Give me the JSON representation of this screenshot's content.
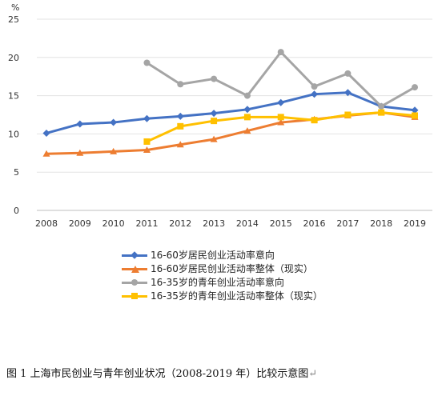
{
  "chart_data": {
    "type": "line",
    "y_unit": "%",
    "x": [
      "2008",
      "2009",
      "2010",
      "2011",
      "2012",
      "2013",
      "2014",
      "2015",
      "2016",
      "2017",
      "2018",
      "2019"
    ],
    "ylim": [
      0,
      25
    ],
    "yticks": [
      0,
      5,
      10,
      15,
      20,
      25
    ],
    "grid": true,
    "legend_position": "bottom",
    "series": [
      {
        "name": "16-60岁居民创业活动率意向",
        "color": "#4472C4",
        "marker": "diamond",
        "values": [
          10.1,
          11.3,
          11.5,
          12.0,
          12.3,
          12.7,
          13.2,
          14.1,
          15.2,
          15.4,
          13.6,
          13.1
        ]
      },
      {
        "name": "16-60岁居民创业活动率整体（现实）",
        "color": "#ED7D31",
        "marker": "triangle",
        "values": [
          7.4,
          7.5,
          7.7,
          7.9,
          8.6,
          9.3,
          10.4,
          11.5,
          11.9,
          12.4,
          12.8,
          12.2
        ]
      },
      {
        "name": "16-35岁的青年创业活动率意向",
        "color": "#A5A5A5",
        "marker": "circle",
        "values": [
          null,
          null,
          null,
          19.3,
          16.5,
          17.2,
          15.0,
          20.7,
          16.2,
          17.9,
          13.6,
          16.1
        ]
      },
      {
        "name": "16-35岁的青年创业活动率整体（现实）",
        "color": "#FFC000",
        "marker": "square",
        "values": [
          null,
          null,
          null,
          9.0,
          11.0,
          11.7,
          12.2,
          12.2,
          11.8,
          12.5,
          12.8,
          12.4
        ]
      }
    ]
  },
  "caption": "图 1  上海市民创业与青年创业状况（2008-2019 年）比较示意图",
  "caption_mark": "↵"
}
